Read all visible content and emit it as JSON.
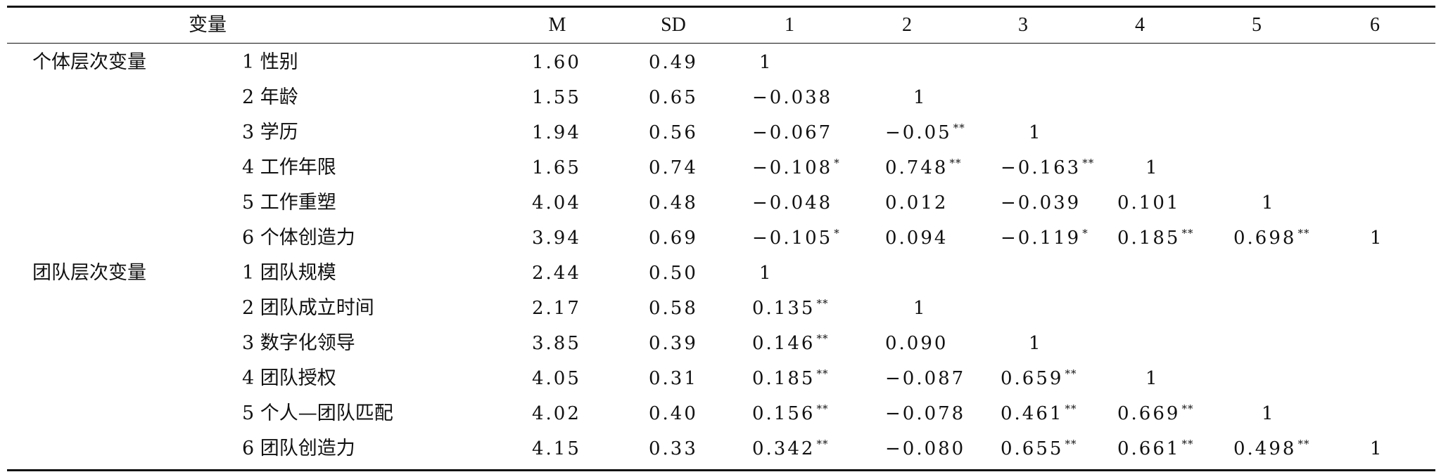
{
  "table": {
    "headers": {
      "variable": "变量",
      "mean": "M",
      "sd": "SD",
      "columns": [
        "1",
        "2",
        "3",
        "4",
        "5",
        "6"
      ]
    },
    "groups": [
      {
        "label": "个体层次变量",
        "rows": [
          {
            "name": "1 性别",
            "m": "1.60",
            "sd": "0.49",
            "cells": [
              {
                "v": "1",
                "s": ""
              }
            ]
          },
          {
            "name": "2 年龄",
            "m": "1.55",
            "sd": "0.65",
            "cells": [
              {
                "v": "−0.038",
                "s": ""
              },
              {
                "v": "1",
                "s": ""
              }
            ]
          },
          {
            "name": "3 学历",
            "m": "1.94",
            "sd": "0.56",
            "cells": [
              {
                "v": "−0.067",
                "s": ""
              },
              {
                "v": "−0.05",
                "s": "**"
              },
              {
                "v": "1",
                "s": ""
              }
            ]
          },
          {
            "name": "4 工作年限",
            "m": "1.65",
            "sd": "0.74",
            "cells": [
              {
                "v": "−0.108",
                "s": "*"
              },
              {
                "v": "0.748",
                "s": "**"
              },
              {
                "v": "−0.163",
                "s": "**"
              },
              {
                "v": "1",
                "s": ""
              }
            ]
          },
          {
            "name": "5 工作重塑",
            "m": "4.04",
            "sd": "0.48",
            "cells": [
              {
                "v": "−0.048",
                "s": ""
              },
              {
                "v": "0.012",
                "s": ""
              },
              {
                "v": "−0.039",
                "s": ""
              },
              {
                "v": "0.101",
                "s": ""
              },
              {
                "v": "1",
                "s": ""
              }
            ]
          },
          {
            "name": "6 个体创造力",
            "m": "3.94",
            "sd": "0.69",
            "cells": [
              {
                "v": "−0.105",
                "s": "*"
              },
              {
                "v": "0.094",
                "s": ""
              },
              {
                "v": "−0.119",
                "s": "*"
              },
              {
                "v": "0.185",
                "s": "**"
              },
              {
                "v": "0.698",
                "s": "**"
              },
              {
                "v": "1",
                "s": ""
              }
            ]
          }
        ]
      },
      {
        "label": "团队层次变量",
        "rows": [
          {
            "name": "1 团队规模",
            "m": "2.44",
            "sd": "0.50",
            "cells": [
              {
                "v": "1",
                "s": ""
              }
            ]
          },
          {
            "name": "2 团队成立时间",
            "m": "2.17",
            "sd": "0.58",
            "cells": [
              {
                "v": "0.135",
                "s": "**"
              },
              {
                "v": "1",
                "s": ""
              }
            ]
          },
          {
            "name": "3 数字化领导",
            "m": "3.85",
            "sd": "0.39",
            "cells": [
              {
                "v": "0.146",
                "s": "**"
              },
              {
                "v": "0.090",
                "s": ""
              },
              {
                "v": "1",
                "s": ""
              }
            ]
          },
          {
            "name": "4 团队授权",
            "m": "4.05",
            "sd": "0.31",
            "cells": [
              {
                "v": "0.185",
                "s": "**"
              },
              {
                "v": "−0.087",
                "s": ""
              },
              {
                "v": "0.659",
                "s": "**"
              },
              {
                "v": "1",
                "s": ""
              }
            ]
          },
          {
            "name": "5 个人—团队匹配",
            "m": "4.02",
            "sd": "0.40",
            "cells": [
              {
                "v": "0.156",
                "s": "**"
              },
              {
                "v": "−0.078",
                "s": ""
              },
              {
                "v": "0.461",
                "s": "**"
              },
              {
                "v": "0.669",
                "s": "**"
              },
              {
                "v": "1",
                "s": ""
              }
            ]
          },
          {
            "name": "6 团队创造力",
            "m": "4.15",
            "sd": "0.33",
            "cells": [
              {
                "v": "0.342",
                "s": "**"
              },
              {
                "v": "−0.080",
                "s": ""
              },
              {
                "v": "0.655",
                "s": "**"
              },
              {
                "v": "0.661",
                "s": "**"
              },
              {
                "v": "0.498",
                "s": "**"
              },
              {
                "v": "1",
                "s": ""
              }
            ]
          }
        ]
      }
    ]
  }
}
